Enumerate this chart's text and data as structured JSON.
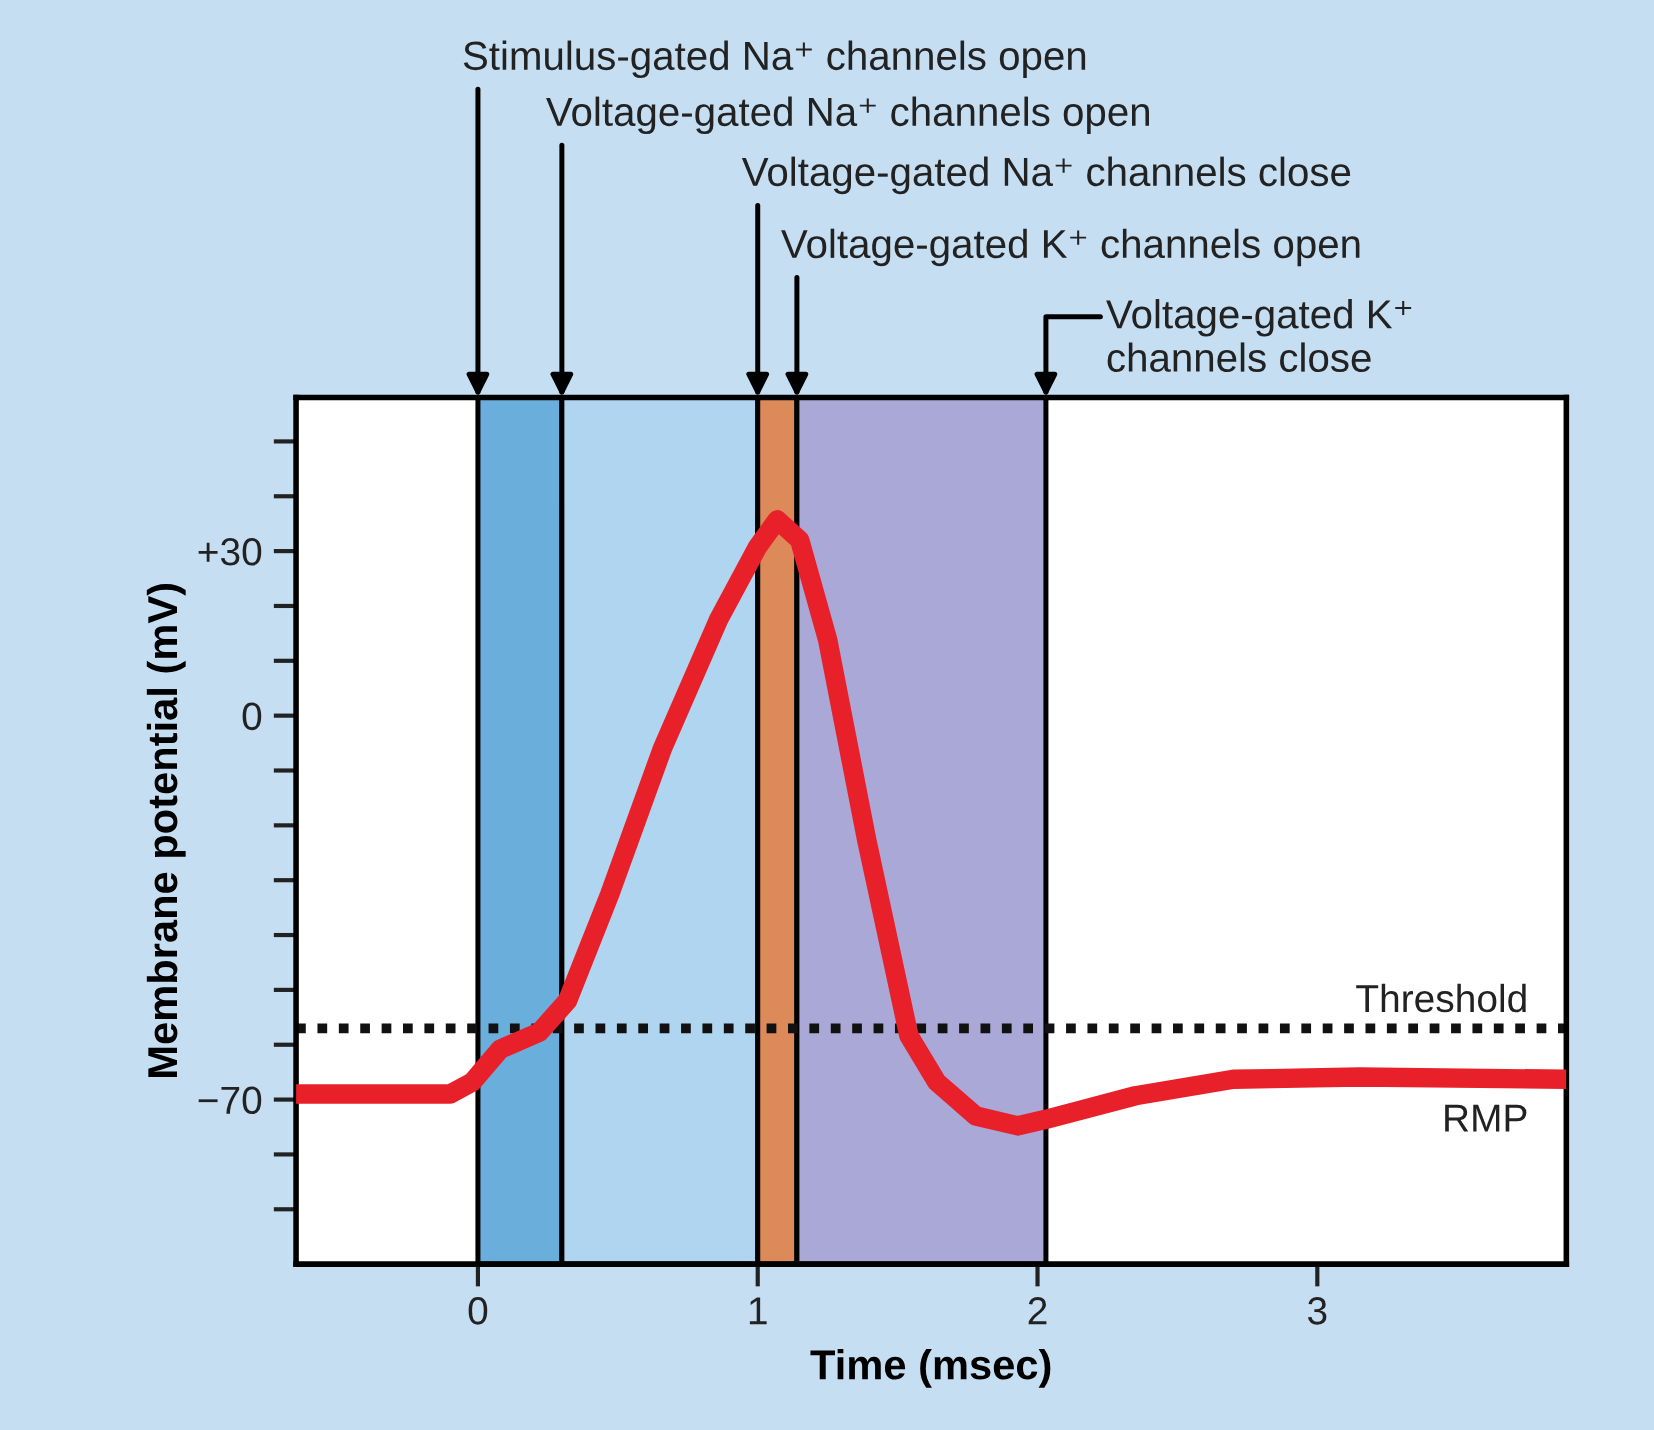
{
  "chart_data": {
    "type": "line",
    "xlabel": "Time (msec)",
    "ylabel": "Membrane potential (mV)",
    "x": [
      -0.65,
      -0.1,
      -0.02,
      0.08,
      0.22,
      0.32,
      0.47,
      0.66,
      0.86,
      1.0,
      1.07,
      1.15,
      1.25,
      1.39,
      1.54,
      1.64,
      1.78,
      1.93,
      2.03,
      2.35,
      2.7,
      3.15,
      3.89
    ],
    "series": [
      {
        "color": "#e8202a",
        "values": [
          -69,
          -69,
          -66.8,
          -60.8,
          -57.7,
          -52,
          -32.7,
          -5.9,
          17.5,
          30.8,
          35.7,
          32,
          13.8,
          -22.8,
          -58.3,
          -66.8,
          -73,
          -74.8,
          -73.6,
          -69.3,
          -66.3,
          -65.9,
          -66.3
        ]
      }
    ],
    "xlim": [
      -0.65,
      3.89
    ],
    "xticks": [
      0,
      1,
      2,
      3
    ],
    "ylim": [
      -100,
      58
    ],
    "yticks": [
      {
        "value": 50,
        "label": null
      },
      {
        "value": 40,
        "label": null
      },
      {
        "value": 30,
        "label": "+30"
      },
      {
        "value": 20,
        "label": null
      },
      {
        "value": 10,
        "label": null
      },
      0,
      {
        "value": -10,
        "label": null
      },
      {
        "value": -20,
        "label": null
      },
      {
        "value": -30,
        "label": null
      },
      {
        "value": -40,
        "label": null
      },
      {
        "value": -50,
        "label": null
      },
      {
        "value": -60,
        "label": null
      },
      {
        "value": -70,
        "label": "−70"
      },
      {
        "value": -80,
        "label": null
      },
      {
        "value": -90,
        "label": null
      }
    ],
    "bands": [
      {
        "axis": "x",
        "from": 0,
        "to": 0.3,
        "color": "#6aaedb"
      },
      {
        "axis": "x",
        "from": 0.3,
        "to": 1.0,
        "color": "#b0d5f0"
      },
      {
        "axis": "x",
        "from": 1.0,
        "to": 1.14,
        "color": "#dd8a5a"
      },
      {
        "axis": "x",
        "from": 1.14,
        "to": 2.03,
        "color": "#a9a8d6"
      }
    ],
    "ref_lines": [
      {
        "axis": "y",
        "value": -57,
        "label": "Threshold",
        "color": "#111111",
        "line_style": "dotted"
      }
    ],
    "annotations": [
      {
        "text": "Stimulus-gated Na⁺ channels open",
        "x": 0,
        "y": 58
      },
      {
        "text": "Voltage-gated Na⁺ channels open",
        "x": 0.3,
        "y": 58
      },
      {
        "text": "Voltage-gated Na⁺ channels close",
        "x": 1.0,
        "y": 58
      },
      {
        "text": "Voltage-gated K⁺ channels open",
        "x": 1.14,
        "y": 58
      },
      {
        "text": "Voltage-gated K⁺\nchannels close",
        "x": 2.03,
        "y": 58
      },
      {
        "text": "RMP",
        "x": 3.6,
        "y": -66
      }
    ],
    "grid": false,
    "legend": false,
    "marker": "none",
    "line_style": "solid"
  }
}
